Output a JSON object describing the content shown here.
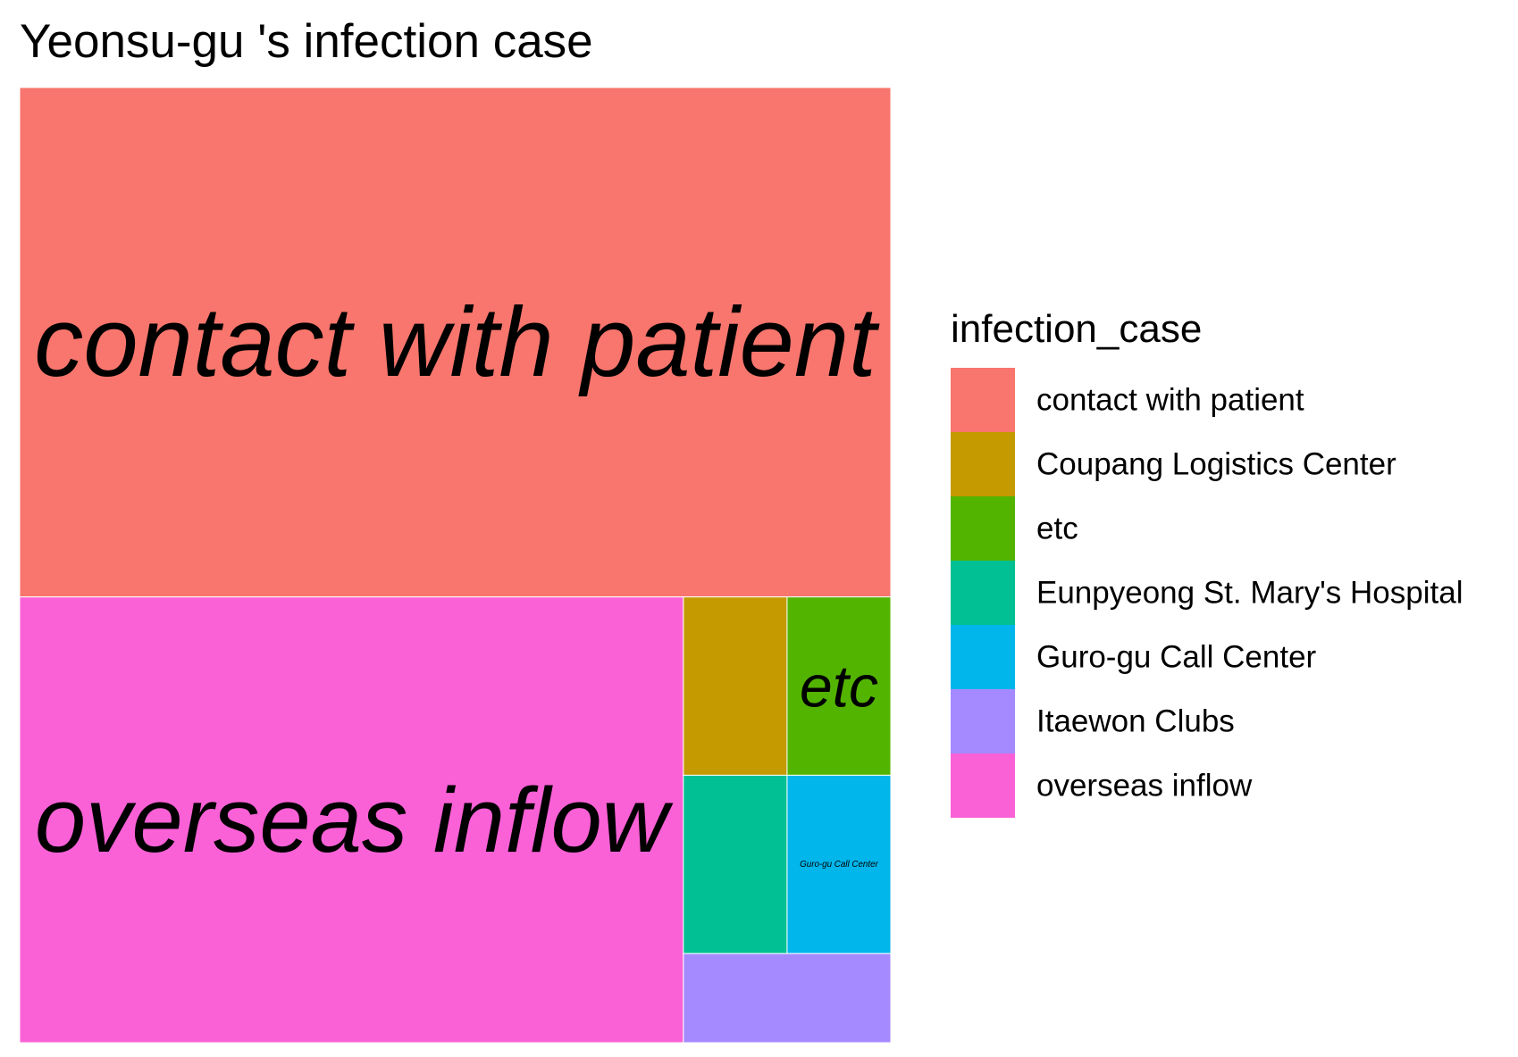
{
  "chart_data": {
    "type": "treemap",
    "title": "Yeonsu-gu 's infection case",
    "legend": {
      "title": "infection_case",
      "position": "right"
    },
    "items": [
      {
        "name": "contact with patient",
        "value": 24,
        "color": "#F8766D"
      },
      {
        "name": "Coupang Logistics Center",
        "value": 1,
        "color": "#C49A00"
      },
      {
        "name": "etc",
        "value": 1,
        "color": "#53B400"
      },
      {
        "name": "Eunpyeong St. Mary's Hospital",
        "value": 1,
        "color": "#00C094"
      },
      {
        "name": "Guro-gu Call Center",
        "value": 1,
        "color": "#00B6EB"
      },
      {
        "name": "Itaewon Clubs",
        "value": 1,
        "color": "#A58AFF"
      },
      {
        "name": "overseas inflow",
        "value": 16,
        "color": "#FB61D7"
      }
    ],
    "tile_labels": {
      "contact with patient": "contact with patient",
      "etc": "etc",
      "Guro-gu Call Center": "Guro-gu Call Center",
      "overseas inflow": "overseas inflow"
    }
  }
}
